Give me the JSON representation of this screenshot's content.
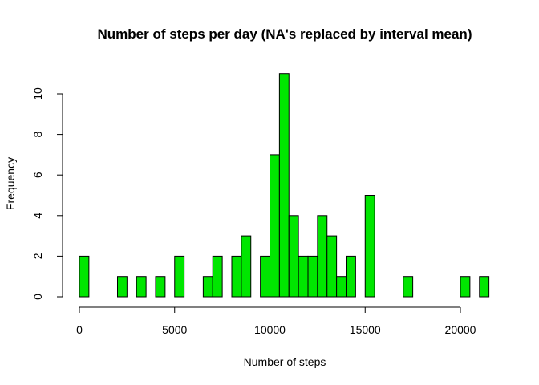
{
  "chart_data": {
    "type": "bar",
    "title": "Number of steps per day (NA's replaced by interval mean)",
    "xlabel": "Number of steps",
    "ylabel": "Frequency",
    "bar_color": "#00e600",
    "bin_width": 500,
    "bin_starts": [
      0,
      500,
      1000,
      1500,
      2000,
      2500,
      3000,
      3500,
      4000,
      4500,
      5000,
      5500,
      6000,
      6500,
      7000,
      7500,
      8000,
      8500,
      9000,
      9500,
      10000,
      10500,
      11000,
      11500,
      12000,
      12500,
      13000,
      13500,
      14000,
      14500,
      15000,
      15500,
      16000,
      16500,
      17000,
      17500,
      18000,
      18500,
      19000,
      19500,
      20000,
      20500,
      21000
    ],
    "values": [
      2,
      0,
      0,
      0,
      1,
      0,
      1,
      0,
      1,
      0,
      2,
      0,
      0,
      1,
      2,
      0,
      2,
      3,
      0,
      2,
      7,
      11,
      4,
      2,
      2,
      4,
      3,
      1,
      2,
      0,
      5,
      0,
      0,
      0,
      1,
      0,
      0,
      0,
      0,
      0,
      1,
      0,
      1
    ],
    "xlim": [
      0,
      21500
    ],
    "ylim": [
      0,
      11
    ],
    "x_ticks": [
      0,
      5000,
      10000,
      15000,
      20000
    ],
    "x_tick_labels": [
      "0",
      "5000",
      "10000",
      "15000",
      "20000"
    ],
    "y_ticks": [
      0,
      2,
      4,
      6,
      8,
      10
    ],
    "y_tick_labels": [
      "0",
      "2",
      "4",
      "6",
      "8",
      "10"
    ]
  }
}
